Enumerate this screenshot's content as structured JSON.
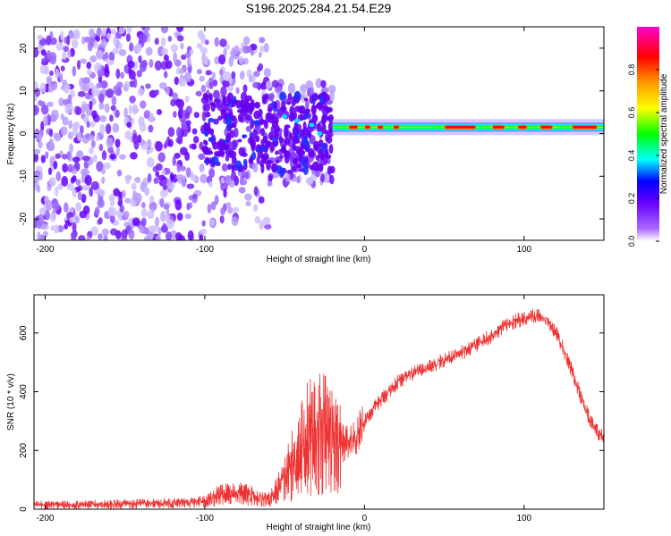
{
  "figure": {
    "title": "S196.2025.284.21.54.E29"
  },
  "chart_data": [
    {
      "type": "heatmap",
      "title": "S196.2025.284.21.54.E29",
      "xlabel": "Height of straight line (km)",
      "ylabel": "Frequency (Hz)",
      "xlim": [
        -207,
        150
      ],
      "ylim": [
        -25,
        25
      ],
      "xticks": [
        -200,
        -100,
        0,
        100
      ],
      "yticks": [
        -20,
        -10,
        0,
        10,
        20
      ],
      "colorbar": {
        "label": "Normalized spectral amplitude",
        "range": [
          0,
          1
        ],
        "ticks": [
          0.0,
          0.2,
          0.4,
          0.6,
          0.8
        ],
        "colormap": [
          "#ff00cc",
          "#ff0000",
          "#ff9900",
          "#ffff00",
          "#00ff00",
          "#00ffff",
          "#0000ff",
          "#8800ff",
          "#ffffff"
        ]
      },
      "features": [
        {
          "name": "scattered noise",
          "x_range": [
            -207,
            -20
          ],
          "y_range": [
            -25,
            25
          ],
          "amplitude": 0.15
        },
        {
          "name": "signal band",
          "x_range": [
            -20,
            150
          ],
          "frequency": 1.5,
          "peak_amplitude": 0.95
        }
      ],
      "grid": false
    },
    {
      "type": "line",
      "xlabel": "Height of straight line (km)",
      "ylabel": "SNR (10 * v/v)",
      "xlim": [
        -207,
        150
      ],
      "ylim": [
        0,
        730
      ],
      "xticks": [
        -200,
        -100,
        0,
        100
      ],
      "yticks": [
        0,
        200,
        400,
        600
      ],
      "color": "#ee3333",
      "x": [
        -207,
        -180,
        -150,
        -120,
        -100,
        -90,
        -80,
        -70,
        -60,
        -55,
        -45,
        -40,
        -35,
        -30,
        -25,
        -20,
        -15,
        -10,
        -5,
        0,
        10,
        20,
        30,
        40,
        50,
        60,
        70,
        80,
        90,
        100,
        105,
        110,
        115,
        120,
        125,
        130,
        135,
        140,
        145,
        150
      ],
      "values": [
        15,
        15,
        18,
        20,
        25,
        50,
        55,
        45,
        30,
        60,
        150,
        200,
        250,
        250,
        260,
        240,
        230,
        220,
        250,
        300,
        370,
        430,
        460,
        480,
        510,
        530,
        560,
        590,
        630,
        650,
        660,
        655,
        640,
        600,
        540,
        470,
        390,
        320,
        270,
        240
      ],
      "grid": false
    }
  ]
}
